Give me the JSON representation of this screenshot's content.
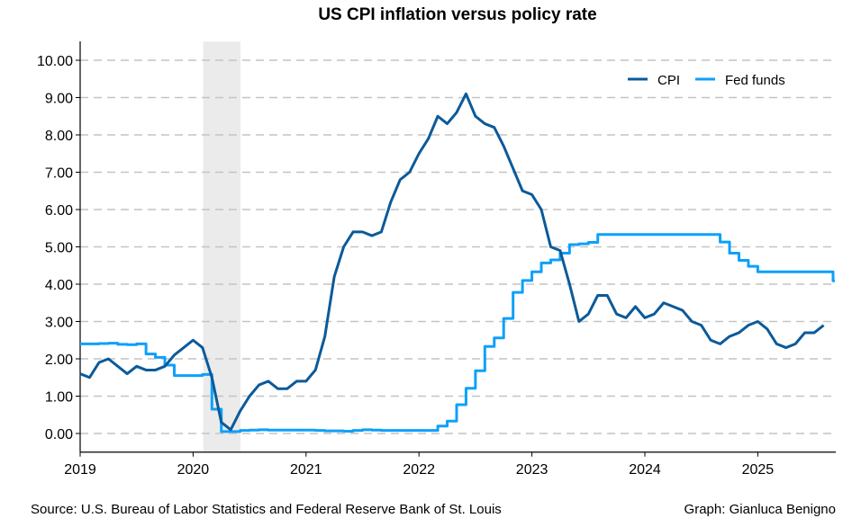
{
  "chart_data": {
    "type": "line",
    "title": "US CPI inflation versus policy rate",
    "xlabel": "",
    "ylabel": "",
    "xlim": [
      2019,
      2025.7
    ],
    "ylim": [
      -0.5,
      10.5
    ],
    "x_ticks": [
      "2019",
      "2020",
      "2021",
      "2022",
      "2023",
      "2024",
      "2025"
    ],
    "y_ticks": [
      "0.00",
      "1.00",
      "2.00",
      "3.00",
      "4.00",
      "5.00",
      "6.00",
      "7.00",
      "8.00",
      "9.00",
      "10.00"
    ],
    "grid": "horizontal dashed",
    "legend_position": "top-right",
    "shaded_period": {
      "label": "recession",
      "start": 2020.09,
      "end": 2020.42
    },
    "series": [
      {
        "name": "CPI",
        "color": "#0b5a9a",
        "style": "line",
        "start": 2019.0,
        "step": 0.08333,
        "values": [
          1.6,
          1.5,
          1.9,
          2.0,
          1.8,
          1.6,
          1.8,
          1.7,
          1.7,
          1.8,
          2.1,
          2.3,
          2.5,
          2.3,
          1.5,
          0.3,
          0.1,
          0.6,
          1.0,
          1.3,
          1.4,
          1.2,
          1.2,
          1.4,
          1.4,
          1.7,
          2.6,
          4.2,
          5.0,
          5.4,
          5.4,
          5.3,
          5.4,
          6.2,
          6.8,
          7.0,
          7.5,
          7.9,
          8.5,
          8.3,
          8.6,
          9.1,
          8.5,
          8.3,
          8.2,
          7.7,
          7.1,
          6.5,
          6.4,
          6.0,
          5.0,
          4.9,
          4.0,
          3.0,
          3.2,
          3.7,
          3.7,
          3.2,
          3.1,
          3.4,
          3.1,
          3.2,
          3.5,
          3.4,
          3.3,
          3.0,
          2.9,
          2.5,
          2.4,
          2.6,
          2.7,
          2.9,
          3.0,
          2.8,
          2.4,
          2.3,
          2.4,
          2.7,
          2.7,
          2.9
        ]
      },
      {
        "name": "Fed funds",
        "color": "#0ea0fa",
        "style": "step",
        "start": 2019.0,
        "step": 0.08333,
        "values": [
          2.4,
          2.4,
          2.41,
          2.42,
          2.39,
          2.38,
          2.4,
          2.13,
          2.04,
          1.83,
          1.55,
          1.55,
          1.55,
          1.58,
          0.65,
          0.05,
          0.05,
          0.08,
          0.09,
          0.1,
          0.09,
          0.09,
          0.09,
          0.09,
          0.09,
          0.08,
          0.07,
          0.07,
          0.06,
          0.08,
          0.1,
          0.09,
          0.08,
          0.08,
          0.08,
          0.08,
          0.08,
          0.08,
          0.2,
          0.33,
          0.77,
          1.21,
          1.68,
          2.33,
          2.56,
          3.08,
          3.78,
          4.1,
          4.33,
          4.57,
          4.65,
          4.83,
          5.06,
          5.08,
          5.12,
          5.33,
          5.33,
          5.33,
          5.33,
          5.33,
          5.33,
          5.33,
          5.33,
          5.33,
          5.33,
          5.33,
          5.33,
          5.33,
          5.13,
          4.83,
          4.64,
          4.48,
          4.33,
          4.33,
          4.33,
          4.33,
          4.33,
          4.33,
          4.33,
          4.33,
          4.09
        ]
      }
    ]
  },
  "footer": {
    "source": "Source: U.S. Bureau of Labor Statistics and Federal Reserve Bank of St. Louis",
    "credit": "Graph: Gianluca Benigno"
  }
}
